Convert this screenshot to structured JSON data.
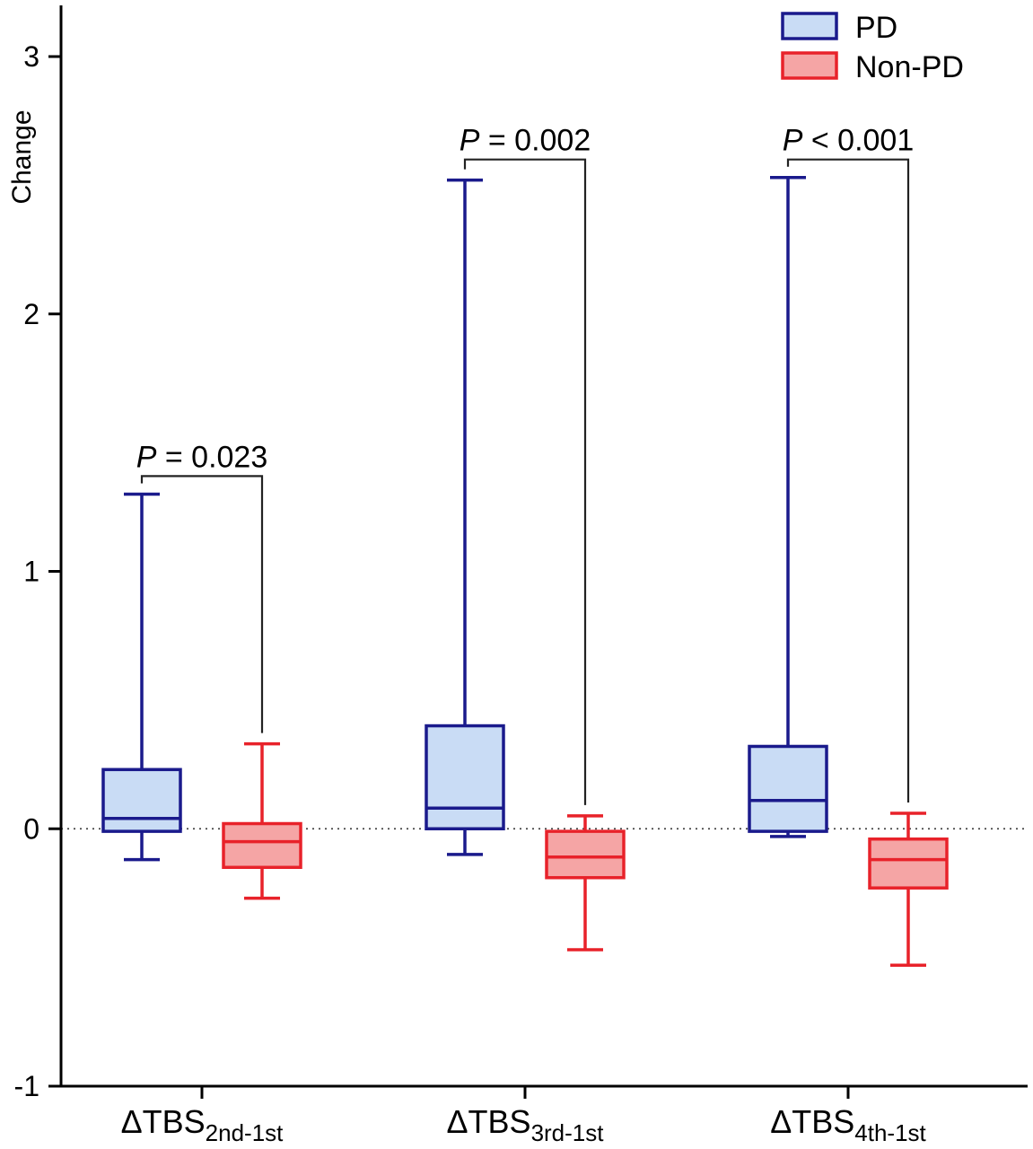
{
  "chart_data": {
    "type": "box",
    "ylabel": "Change",
    "ylim": [
      -1,
      3.2
    ],
    "yticks": [
      -1,
      0,
      1,
      2,
      3
    ],
    "reference_line_y": 0,
    "categories": [
      {
        "base": "ΔTBS",
        "sub": "2nd-1st"
      },
      {
        "base": "ΔTBS",
        "sub": "3rd-1st"
      },
      {
        "base": "ΔTBS",
        "sub": "4th-1st"
      }
    ],
    "series": [
      {
        "name": "PD",
        "stroke": "#1a1a8c",
        "fill": "#c9dcf5",
        "boxes": [
          {
            "min": -0.12,
            "q1": -0.01,
            "median": 0.04,
            "q3": 0.23,
            "max": 1.3
          },
          {
            "min": -0.1,
            "q1": 0.0,
            "median": 0.08,
            "q3": 0.4,
            "max": 2.52
          },
          {
            "min": -0.03,
            "q1": -0.01,
            "median": 0.11,
            "q3": 0.32,
            "max": 2.53
          }
        ]
      },
      {
        "name": "Non-PD",
        "stroke": "#e8222a",
        "fill": "#f5a5a5",
        "boxes": [
          {
            "min": -0.27,
            "q1": -0.15,
            "median": -0.05,
            "q3": 0.02,
            "max": 0.33
          },
          {
            "min": -0.47,
            "q1": -0.19,
            "median": -0.11,
            "q3": -0.01,
            "max": 0.05
          },
          {
            "min": -0.53,
            "q1": -0.23,
            "median": -0.12,
            "q3": -0.04,
            "max": 0.06
          }
        ]
      }
    ],
    "annotations": [
      {
        "category": 0,
        "p_label": "P",
        "p_text": " = 0.023",
        "bracket_y": 1.37
      },
      {
        "category": 1,
        "p_label": "P",
        "p_text": " = 0.002",
        "bracket_y": 2.6
      },
      {
        "category": 2,
        "p_label": "P",
        "p_text": " < 0.001",
        "bracket_y": 2.6
      }
    ],
    "legend": {
      "position": "top-right"
    }
  }
}
